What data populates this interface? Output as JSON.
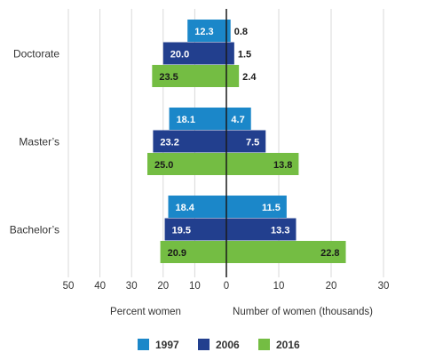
{
  "chart_data": {
    "type": "bar",
    "orientation": "horizontal-diverging",
    "categories": [
      "Doctorate",
      "Master’s",
      "Bachelor’s"
    ],
    "series": [
      {
        "name": "1997",
        "color": "#1b87c9",
        "percent_women": [
          12.3,
          18.1,
          18.4
        ],
        "number_of_women_thousands": [
          0.8,
          4.7,
          11.5
        ],
        "percent_labels": [
          "12.3",
          "18.1",
          "18.4"
        ],
        "number_labels": [
          "0.8",
          "4.7",
          "11.5"
        ]
      },
      {
        "name": "2006",
        "color": "#223f8e",
        "percent_women": [
          20.0,
          23.2,
          19.5
        ],
        "number_of_women_thousands": [
          1.5,
          7.5,
          13.3
        ],
        "percent_labels": [
          "20.0",
          "23.2",
          "19.5"
        ],
        "number_labels": [
          "1.5",
          "7.5",
          "13.3"
        ]
      },
      {
        "name": "2016",
        "color": "#74bd43",
        "percent_women": [
          23.5,
          25.0,
          20.9
        ],
        "number_of_women_thousands": [
          2.4,
          13.8,
          22.8
        ],
        "percent_labels": [
          "23.5",
          "25.0",
          "20.9"
        ],
        "number_labels": [
          "2.4",
          "13.8",
          "22.8"
        ]
      }
    ],
    "left_axis": {
      "label": "Percent women",
      "range": [
        0,
        50
      ],
      "ticks": [
        "50",
        "40",
        "30",
        "20",
        "10",
        "0"
      ],
      "tick_values": [
        50,
        40,
        30,
        20,
        10,
        0
      ]
    },
    "right_axis": {
      "label": "Number of women (thousands)",
      "range": [
        0,
        30
      ],
      "ticks": [
        "10",
        "20",
        "30"
      ],
      "tick_values": [
        10,
        20,
        30
      ]
    },
    "grid": true,
    "legend_position": "bottom-center"
  }
}
